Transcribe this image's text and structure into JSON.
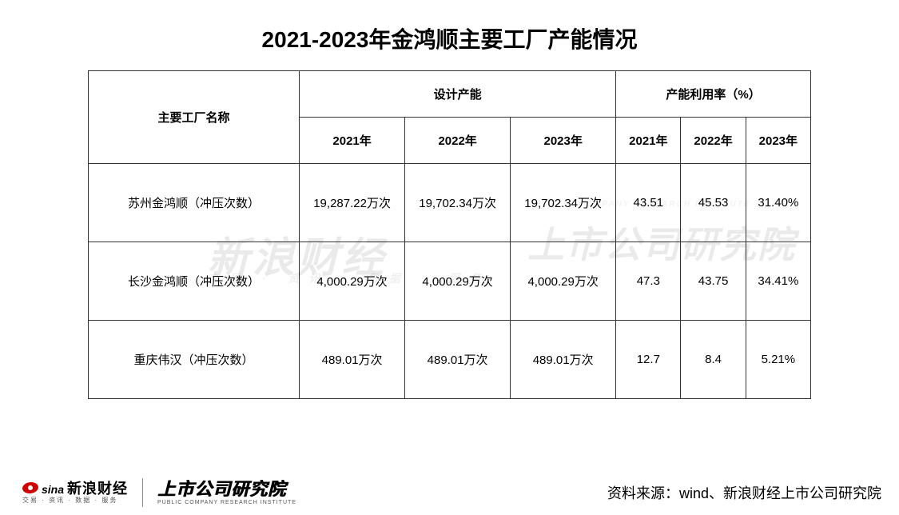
{
  "title": "2021-2023年金鸿顺主要工厂产能情况",
  "table": {
    "header": {
      "factory": "主要工厂名称",
      "capacity_group": "设计产能",
      "utilization_group": "产能利用率（%）",
      "years": [
        "2021年",
        "2022年",
        "2023年"
      ]
    },
    "columns_widths": {
      "factory": 260,
      "capacity": 130,
      "utilization": 80
    },
    "rows": [
      {
        "factory": "苏州金鸿顺（冲压次数）",
        "capacity": [
          "19,287.22万次",
          "19,702.34万次",
          "19,702.34万次"
        ],
        "utilization": [
          "43.51",
          "45.53",
          "31.40%"
        ]
      },
      {
        "factory": "长沙金鸿顺（冲压次数）",
        "capacity": [
          "4,000.29万次",
          "4,000.29万次",
          "4,000.29万次"
        ],
        "utilization": [
          "47.3",
          "43.75",
          "34.41%"
        ]
      },
      {
        "factory": "重庆伟汉（冲压次数）",
        "capacity": [
          "489.01万次",
          "489.01万次",
          "489.01万次"
        ],
        "utilization": [
          "12.7",
          "8.4",
          "5.21%"
        ]
      }
    ]
  },
  "footer": {
    "logo_sina_brand": "sina",
    "logo_sina_cn": "新浪财经",
    "logo_sina_sub": "交易 · 资讯 · 数据 · 服务",
    "logo_inst_main": "上市公司研究院",
    "logo_inst_sub": "PUBLIC COMPANY RESEARCH INSTITUTE",
    "source": "资料来源：wind、新浪财经上市公司研究院"
  },
  "watermarks": {
    "wm1": "新浪财经",
    "wm1_sub": "交易 · 资讯 · 数据 · 服务",
    "wm2": "上市公司研究院",
    "wm2_sub": "PUBLIC COMPANY RESEARCH INSTITUTE"
  },
  "style": {
    "background_color": "#ffffff",
    "border_color": "#333333",
    "title_fontsize": 28,
    "cell_fontsize": 15,
    "source_fontsize": 18,
    "text_color": "#000000"
  }
}
